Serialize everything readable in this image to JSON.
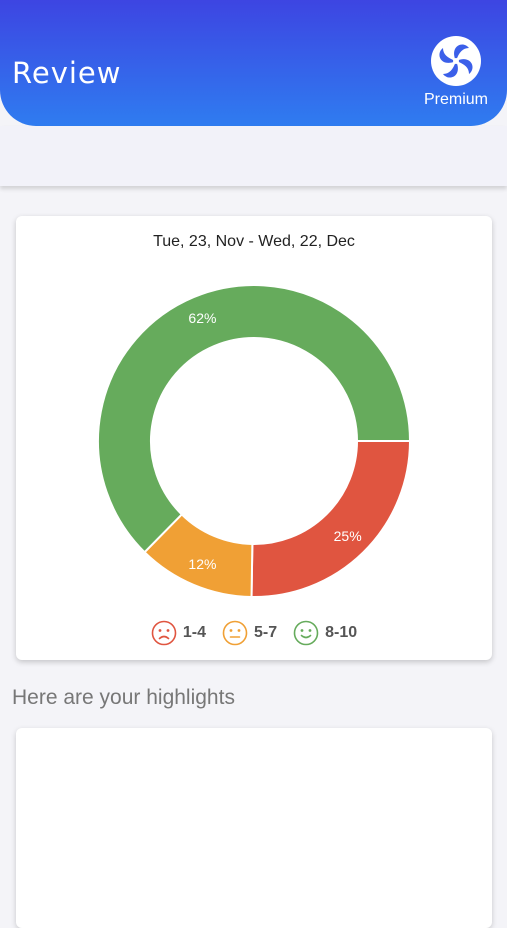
{
  "header": {
    "title": "Review",
    "premium_label": "Premium",
    "logo_icon": "premium-pinwheel-icon"
  },
  "review_card": {
    "date_range": "Tue, 23, Nov - Wed, 22, Dec"
  },
  "chart_data": {
    "type": "pie",
    "donut": true,
    "categories": [
      "1-4",
      "5-7",
      "8-10"
    ],
    "values": [
      25,
      12,
      62
    ],
    "labels": [
      "25%",
      "12%",
      "62%"
    ],
    "colors": [
      "#e05540",
      "#f0a035",
      "#66ab5c"
    ],
    "title": "Tue, 23, Nov - Wed, 22, Dec",
    "legend_position": "bottom"
  },
  "legend": [
    {
      "label": "1-4",
      "icon": "sad-face-icon",
      "color": "#e05540"
    },
    {
      "label": "5-7",
      "icon": "neutral-face-icon",
      "color": "#f0a035"
    },
    {
      "label": "8-10",
      "icon": "happy-face-icon",
      "color": "#66ab5c"
    }
  ],
  "highlights": {
    "title": "Here are your highlights"
  }
}
